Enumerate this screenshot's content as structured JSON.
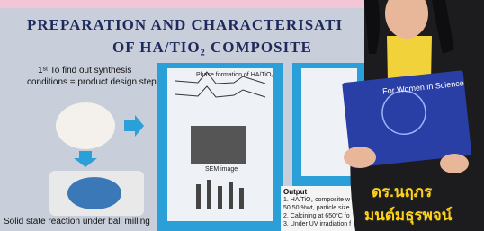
{
  "poster": {
    "title_line1": "PREPARATION AND CHARACTERISATI",
    "title_line2": "OF HA/TIO₂ COMPOSITE",
    "step_line1": "1ˢᵗ To find out synthesis",
    "step_line2": "conditions = product design step",
    "phase_caption": "Phase formation of HA/TiO₂",
    "sem_caption": "SEM image",
    "method_caption": "Solid state reaction under ball milling",
    "output": {
      "heading": "Output",
      "items": [
        "1. HA/TiO₂ composite w",
        "50:50 %wt, particle size",
        "2. Calcining at 650°C fo",
        "3. Under UV irradiation f"
      ]
    }
  },
  "folder": {
    "label": "For Women in Science"
  },
  "caption": {
    "line1": "ดร.นฤภร",
    "line2": "มนต์มธุรพจน์"
  }
}
